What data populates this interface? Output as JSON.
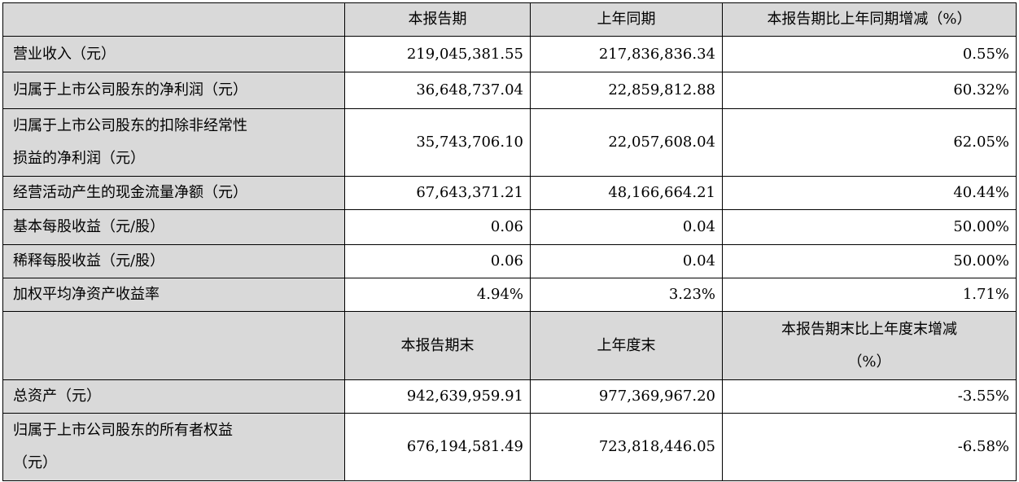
{
  "header1": {
    "blank": "",
    "col1": "本报告期",
    "col2": "上年同期",
    "col3": "本报告期比上年同期增减（%）"
  },
  "rows1": [
    {
      "label": "营业收入（元）",
      "v1": "219,045,381.55",
      "v2": "217,836,836.34",
      "v3": "0.55%"
    },
    {
      "label": "归属于上市公司股东的净利润（元）",
      "v1": "36,648,737.04",
      "v2": "22,859,812.88",
      "v3": "60.32%"
    },
    {
      "label_line1": "归属于上市公司股东的扣除非经常性",
      "label_line2": "损益的净利润（元）",
      "v1": "35,743,706.10",
      "v2": "22,057,608.04",
      "v3": "62.05%"
    },
    {
      "label": "经营活动产生的现金流量净额（元）",
      "v1": "67,643,371.21",
      "v2": "48,166,664.21",
      "v3": "40.44%"
    },
    {
      "label": "基本每股收益（元/股）",
      "v1": "0.06",
      "v2": "0.04",
      "v3": "50.00%"
    },
    {
      "label": "稀释每股收益（元/股）",
      "v1": "0.06",
      "v2": "0.04",
      "v3": "50.00%"
    },
    {
      "label": "加权平均净资产收益率",
      "v1": "4.94%",
      "v2": "3.23%",
      "v3": "1.71%"
    }
  ],
  "header2": {
    "blank": "",
    "col1": "本报告期末",
    "col2": "上年度末",
    "col3_line1": "本报告期末比上年度末增减",
    "col3_line2": "（%）"
  },
  "rows2": [
    {
      "label": "总资产（元）",
      "v1": "942,639,959.91",
      "v2": "977,369,967.20",
      "v3": "-3.55%"
    },
    {
      "label_line1": "归属于上市公司股东的所有者权益",
      "label_line2": "（元）",
      "v1": "676,194,581.49",
      "v2": "723,818,446.05",
      "v3": "-6.58%"
    }
  ]
}
